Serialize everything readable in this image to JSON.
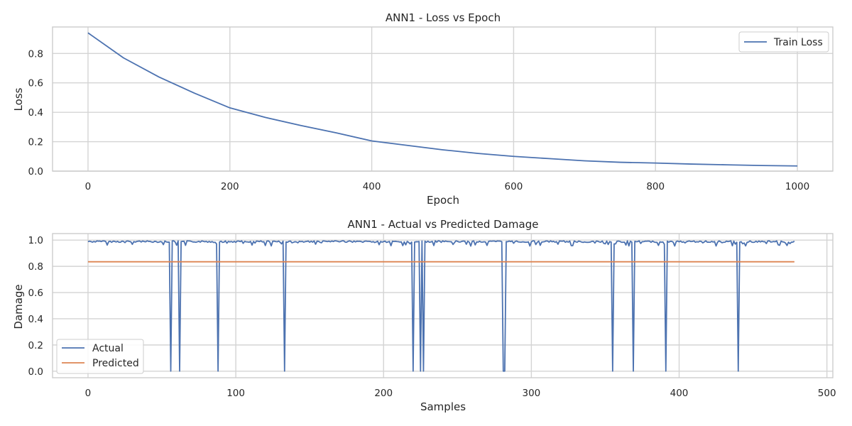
{
  "chart_data": [
    {
      "type": "line",
      "title": "ANN1 - Loss vs Epoch",
      "xlabel": "Epoch",
      "ylabel": "Loss",
      "xlim": [
        -50,
        1050
      ],
      "ylim": [
        0.0,
        0.98
      ],
      "xticks": [
        0,
        200,
        400,
        600,
        800,
        1000
      ],
      "yticks": [
        0.0,
        0.2,
        0.4,
        0.6,
        0.8
      ],
      "xtick_labels": [
        "0",
        "200",
        "400",
        "600",
        "800",
        "1000"
      ],
      "ytick_labels": [
        "0.0",
        "0.2",
        "0.4",
        "0.6",
        "0.8"
      ],
      "grid": true,
      "legend_position": "upper right",
      "series": [
        {
          "name": "Train Loss",
          "color": "#4c72b0",
          "x": [
            0,
            50,
            100,
            150,
            200,
            250,
            300,
            350,
            400,
            450,
            500,
            550,
            600,
            650,
            700,
            750,
            800,
            850,
            900,
            950,
            1000
          ],
          "values": [
            0.94,
            0.77,
            0.64,
            0.53,
            0.43,
            0.365,
            0.31,
            0.26,
            0.205,
            0.175,
            0.145,
            0.12,
            0.1,
            0.085,
            0.07,
            0.06,
            0.055,
            0.048,
            0.043,
            0.038,
            0.035
          ]
        }
      ]
    },
    {
      "type": "line",
      "title": "ANN1 - Actual vs Predicted Damage",
      "xlabel": "Samples",
      "ylabel": "Damage",
      "xlim": [
        -24,
        504
      ],
      "ylim": [
        -0.05,
        1.05
      ],
      "xticks": [
        0,
        100,
        200,
        300,
        400,
        500
      ],
      "yticks": [
        0.0,
        0.2,
        0.4,
        0.6,
        0.8,
        1.0
      ],
      "xtick_labels": [
        "0",
        "100",
        "200",
        "300",
        "400",
        "500"
      ],
      "ytick_labels": [
        "0.0",
        "0.2",
        "0.4",
        "0.6",
        "0.8",
        "1.0"
      ],
      "grid": true,
      "legend_position": "lower left",
      "n_samples": 479,
      "series": [
        {
          "name": "Actual",
          "color": "#4c72b0",
          "baseline_range": [
            0.955,
            0.995
          ],
          "zero_at": [
            56,
            62,
            88,
            133,
            220,
            225,
            227,
            281,
            282,
            355,
            369,
            391,
            440
          ],
          "comment_values": "baseline noise near 1.0 with drops to 0.0 at listed samples"
        },
        {
          "name": "Predicted",
          "color": "#dd8452",
          "constant_value": 0.835
        }
      ]
    }
  ]
}
